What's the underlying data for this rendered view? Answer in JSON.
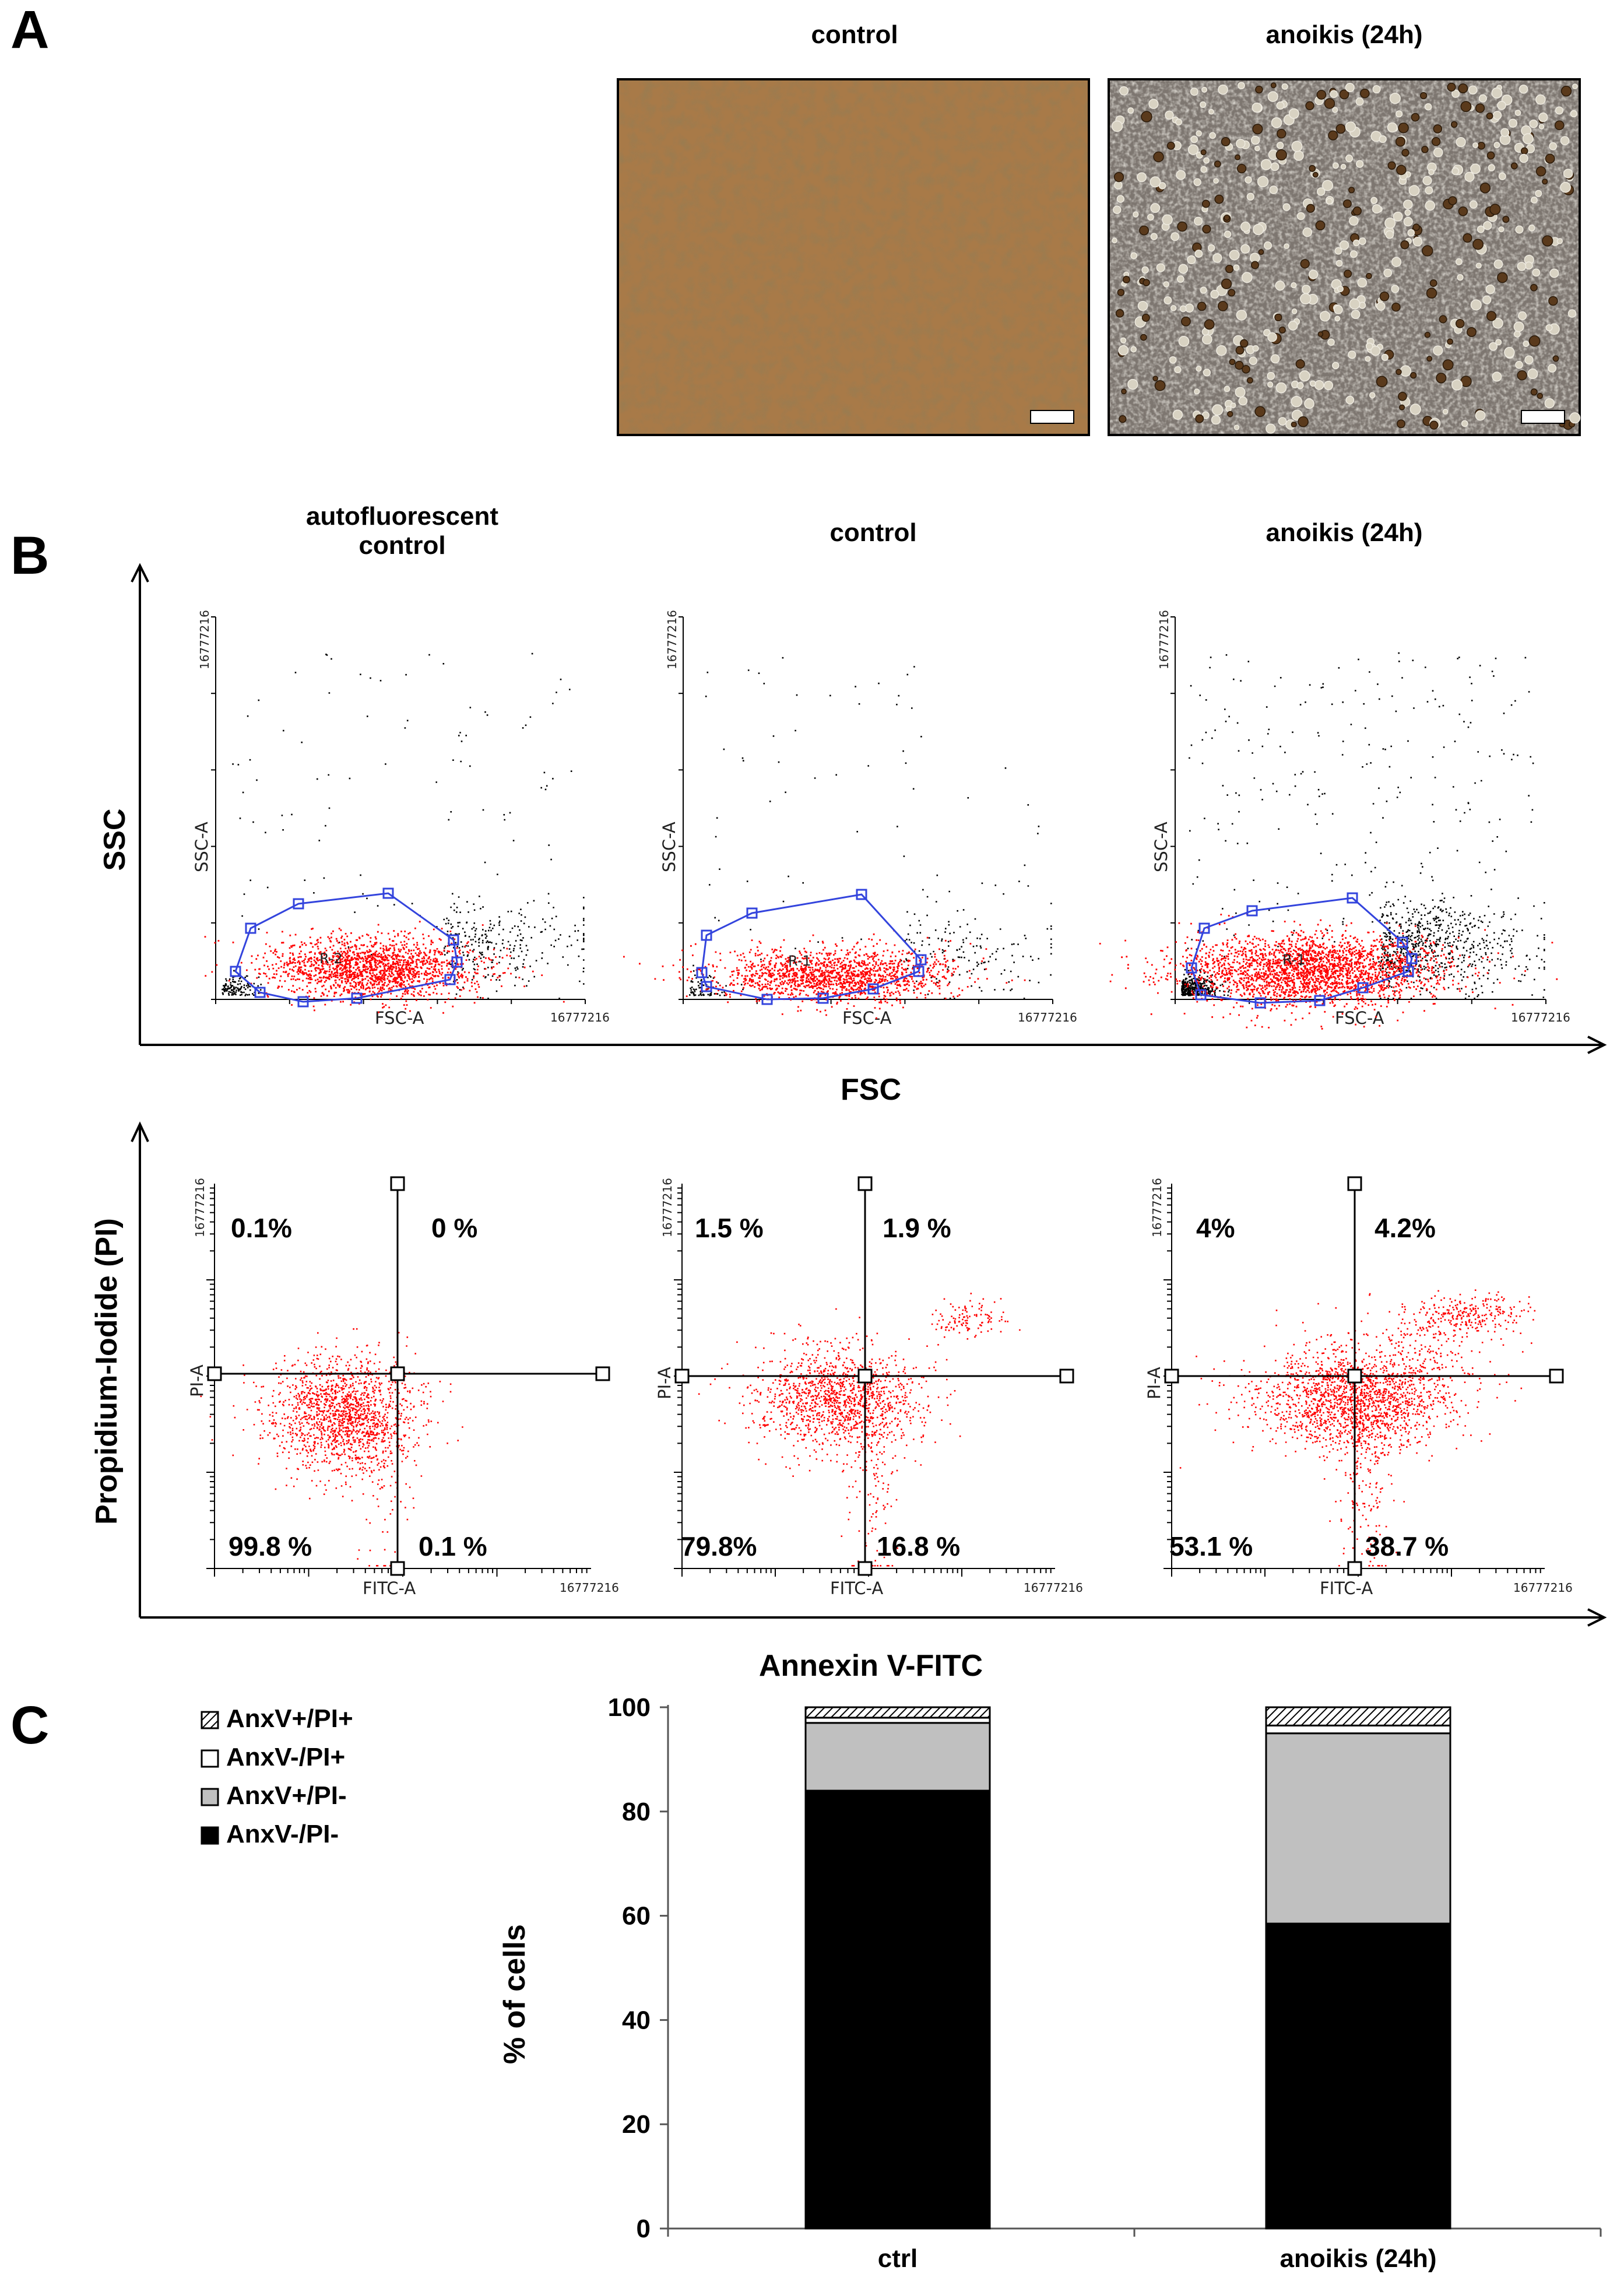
{
  "panel_a": {
    "letter": "A",
    "images": [
      {
        "title": "control"
      },
      {
        "title": "anoikis (24h)"
      }
    ]
  },
  "panel_b": {
    "letter": "B",
    "columns": [
      "autofluorescent\ncontrol",
      "control",
      "anoikis (24h)"
    ],
    "scatter_y_label": "SSC",
    "scatter_x_label": "FSC",
    "annexin_y_label": "Propidium-Iodide (PI)",
    "annexin_x_label": "Annexin V-FITC",
    "plot_axis_max": "16777216",
    "ssc_axis": "SSC-A",
    "fsc_axis": "FSC-A",
    "pi_axis": "PI-A",
    "fitc_axis": "FITC-A",
    "gate_labels": [
      "R-2",
      "R-1",
      "R-1"
    ],
    "quadrants": [
      {
        "UL": "0.1%",
        "UR": "0 %",
        "LL": "99.8 %",
        "LR": "0.1 %"
      },
      {
        "UL": "1.5 %",
        "UR": "1.9 %",
        "LL": "79.8%",
        "LR": "16.8 %"
      },
      {
        "UL": "4%",
        "UR": "4.2%",
        "LL": "53.1 %",
        "LR": "38.7 %"
      }
    ]
  },
  "panel_c": {
    "letter": "C"
  },
  "chart_data": {
    "type": "bar",
    "stacked": true,
    "categories": [
      "ctrl",
      "anoikis (24h)"
    ],
    "series": [
      {
        "name": "AnxV-/PI-",
        "values": [
          84,
          58.5
        ],
        "fill": "#000000"
      },
      {
        "name": "AnxV+/PI-",
        "values": [
          13,
          36.5
        ],
        "fill": "#c0c0c0"
      },
      {
        "name": "AnxV-/PI+",
        "values": [
          1,
          1.5
        ],
        "fill": "#ffffff"
      },
      {
        "name": "AnxV+/PI+",
        "values": [
          2,
          3.5
        ],
        "fill": "hatched"
      }
    ],
    "legend_order": [
      "AnxV+/PI+",
      "AnxV-/PI+",
      "AnxV+/PI-",
      "AnxV-/PI-"
    ],
    "ylabel": "% of cells",
    "xlabel": "",
    "ylim": [
      0,
      100
    ],
    "yticks": [
      0,
      20,
      40,
      60,
      80,
      100
    ],
    "grid": false,
    "legend_position": "top-left"
  },
  "colors": {
    "events_gated": "#ff0000",
    "events_ungated": "#000000",
    "gate_outline": "#3344dd",
    "brightfield_control": "#a87a48",
    "brightfield_anoikis": "#7d7670"
  }
}
